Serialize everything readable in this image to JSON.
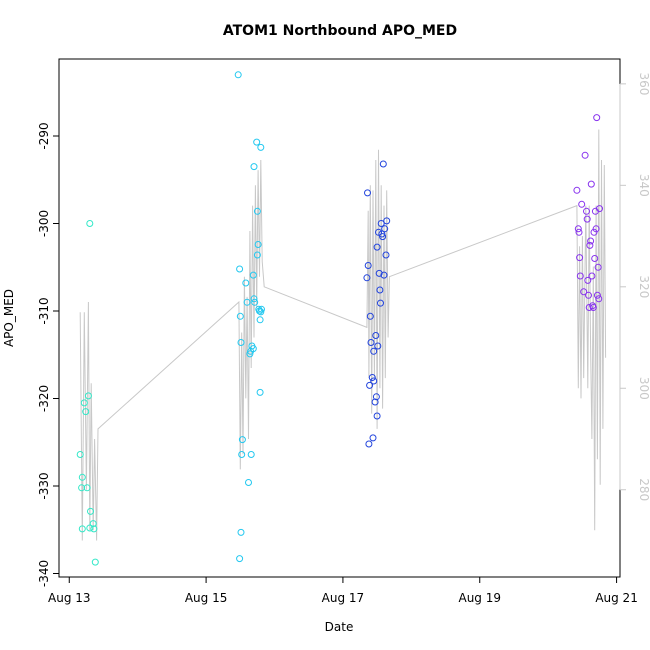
{
  "chart_data": {
    "type": "scatter",
    "title": "ATOM1 Northbound APO_MED",
    "xlabel": "Date",
    "ylabel": "APO_MED",
    "x_ticks": [
      "Aug 13",
      "Aug 15",
      "Aug 17",
      "Aug 19",
      "Aug 21"
    ],
    "x_range_days": [
      12.85,
      21.05
    ],
    "y_ticks": [
      -290,
      -300,
      -310,
      -320,
      -330,
      -340
    ],
    "ylim": [
      -340.4,
      -281.2
    ],
    "y2_ticks": [
      280,
      300,
      320,
      340,
      360
    ],
    "y2lim": [
      262.8,
      364.9
    ],
    "grid": false,
    "legend": "none",
    "colors": {
      "point_group1": "#33e8c8",
      "point_group2": "#22c8f0",
      "point_group3": "#2244dd",
      "point_group4": "#8833ee",
      "secondary_line": "#c8c8c8",
      "axis": "#000000",
      "right_axis": "#c8c8c8"
    },
    "series": [
      {
        "color_key": "point_group1",
        "points": [
          [
            13.18,
            -330.2
          ],
          [
            13.26,
            -330.2
          ],
          [
            13.3,
            -334.8
          ],
          [
            13.31,
            -332.9
          ],
          [
            13.19,
            -329.0
          ],
          [
            13.16,
            -326.4
          ],
          [
            13.22,
            -320.5
          ],
          [
            13.24,
            -321.5
          ],
          [
            13.28,
            -319.7
          ],
          [
            13.3,
            -300.0
          ],
          [
            13.35,
            -334.3
          ],
          [
            13.36,
            -334.9
          ],
          [
            13.38,
            -338.7
          ],
          [
            13.19,
            -334.9
          ]
        ]
      },
      {
        "color_key": "point_group2",
        "points": [
          [
            15.47,
            -283.0
          ],
          [
            15.49,
            -305.2
          ],
          [
            15.5,
            -310.6
          ],
          [
            15.51,
            -313.6
          ],
          [
            15.52,
            -326.4
          ],
          [
            15.53,
            -324.7
          ],
          [
            15.51,
            -335.3
          ],
          [
            15.49,
            -338.3
          ],
          [
            15.58,
            -306.8
          ],
          [
            15.6,
            -309.0
          ],
          [
            15.62,
            -329.6
          ],
          [
            15.64,
            -314.9
          ],
          [
            15.65,
            -314.6
          ],
          [
            15.67,
            -314.0
          ],
          [
            15.69,
            -314.3
          ],
          [
            15.66,
            -326.4
          ],
          [
            15.69,
            -305.9
          ],
          [
            15.7,
            -308.6
          ],
          [
            15.71,
            -309.0
          ],
          [
            15.7,
            -293.5
          ],
          [
            15.74,
            -290.7
          ],
          [
            15.75,
            -298.6
          ],
          [
            15.76,
            -302.4
          ],
          [
            15.75,
            -303.6
          ],
          [
            15.77,
            -309.8
          ],
          [
            15.78,
            -310.0
          ],
          [
            15.79,
            -319.3
          ],
          [
            15.8,
            -291.3
          ],
          [
            15.81,
            -309.8
          ],
          [
            15.8,
            -310.1
          ],
          [
            15.79,
            -311.0
          ]
        ]
      },
      {
        "color_key": "point_group3",
        "points": [
          [
            17.36,
            -296.5
          ],
          [
            17.37,
            -304.8
          ],
          [
            17.35,
            -306.2
          ],
          [
            17.4,
            -310.6
          ],
          [
            17.41,
            -313.6
          ],
          [
            17.39,
            -318.5
          ],
          [
            17.38,
            -325.2
          ],
          [
            17.44,
            -324.5
          ],
          [
            17.45,
            -314.6
          ],
          [
            17.43,
            -317.6
          ],
          [
            17.45,
            -318.0
          ],
          [
            17.47,
            -320.4
          ],
          [
            17.49,
            -319.8
          ],
          [
            17.5,
            -322.0
          ],
          [
            17.51,
            -314.0
          ],
          [
            17.48,
            -312.8
          ],
          [
            17.5,
            -302.7
          ],
          [
            17.52,
            -301.0
          ],
          [
            17.53,
            -305.7
          ],
          [
            17.54,
            -307.6
          ],
          [
            17.55,
            -309.1
          ],
          [
            17.56,
            -300.0
          ],
          [
            17.57,
            -301.2
          ],
          [
            17.58,
            -301.5
          ],
          [
            17.59,
            -293.2
          ],
          [
            17.6,
            -305.9
          ],
          [
            17.61,
            -300.6
          ],
          [
            17.63,
            -303.6
          ],
          [
            17.64,
            -299.7
          ]
        ]
      },
      {
        "color_key": "point_group4",
        "points": [
          [
            20.42,
            -296.2
          ],
          [
            20.44,
            -300.6
          ],
          [
            20.45,
            -301.0
          ],
          [
            20.46,
            -303.9
          ],
          [
            20.47,
            -306.0
          ],
          [
            20.49,
            -297.8
          ],
          [
            20.52,
            -307.8
          ],
          [
            20.54,
            -292.2
          ],
          [
            20.56,
            -298.6
          ],
          [
            20.57,
            -299.5
          ],
          [
            20.58,
            -306.5
          ],
          [
            20.59,
            -308.2
          ],
          [
            20.6,
            -309.6
          ],
          [
            20.61,
            -302.5
          ],
          [
            20.62,
            -302.0
          ],
          [
            20.63,
            -295.5
          ],
          [
            20.64,
            -306.0
          ],
          [
            20.65,
            -309.4
          ],
          [
            20.67,
            -301.0
          ],
          [
            20.68,
            -304.0
          ],
          [
            20.69,
            -298.6
          ],
          [
            20.7,
            -300.6
          ],
          [
            20.71,
            -287.9
          ],
          [
            20.72,
            -308.2
          ],
          [
            20.73,
            -305.0
          ],
          [
            20.74,
            -308.6
          ],
          [
            20.75,
            -298.3
          ],
          [
            20.66,
            -309.6
          ]
        ]
      }
    ],
    "secondary_line": {
      "axis": "right",
      "points": [
        [
          13.16,
          315
        ],
        [
          13.19,
          270
        ],
        [
          13.22,
          315
        ],
        [
          13.25,
          280
        ],
        [
          13.28,
          317
        ],
        [
          13.3,
          272
        ],
        [
          13.32,
          301
        ],
        [
          13.35,
          272
        ],
        [
          13.37,
          290
        ],
        [
          13.4,
          270
        ],
        [
          13.42,
          292
        ],
        [
          15.48,
          317
        ],
        [
          15.5,
          284
        ],
        [
          15.52,
          311
        ],
        [
          15.54,
          287
        ],
        [
          15.56,
          322
        ],
        [
          15.58,
          298
        ],
        [
          15.6,
          318
        ],
        [
          15.62,
          290
        ],
        [
          15.64,
          331
        ],
        [
          15.66,
          304
        ],
        [
          15.68,
          336
        ],
        [
          15.7,
          310
        ],
        [
          15.72,
          340
        ],
        [
          15.74,
          316
        ],
        [
          15.76,
          343
        ],
        [
          15.78,
          322
        ],
        [
          15.8,
          345
        ],
        [
          15.82,
          325
        ],
        [
          15.85,
          320
        ],
        [
          17.35,
          312
        ],
        [
          17.37,
          335
        ],
        [
          17.38,
          302
        ],
        [
          17.4,
          340
        ],
        [
          17.42,
          295
        ],
        [
          17.44,
          339
        ],
        [
          17.46,
          302
        ],
        [
          17.48,
          345
        ],
        [
          17.5,
          292
        ],
        [
          17.52,
          347
        ],
        [
          17.54,
          300
        ],
        [
          17.56,
          340
        ],
        [
          17.58,
          296
        ],
        [
          17.6,
          336
        ],
        [
          17.62,
          302
        ],
        [
          17.64,
          339
        ],
        [
          17.66,
          310
        ],
        [
          17.68,
          322
        ],
        [
          20.42,
          336
        ],
        [
          20.44,
          300
        ],
        [
          20.46,
          328
        ],
        [
          20.48,
          298
        ],
        [
          20.5,
          330
        ],
        [
          20.52,
          302
        ],
        [
          20.55,
          336
        ],
        [
          20.58,
          300
        ],
        [
          20.6,
          336
        ],
        [
          20.62,
          308
        ],
        [
          20.64,
          290
        ],
        [
          20.66,
          324
        ],
        [
          20.68,
          272
        ],
        [
          20.7,
          336
        ],
        [
          20.72,
          286
        ],
        [
          20.74,
          351
        ],
        [
          20.76,
          281
        ],
        [
          20.78,
          345
        ],
        [
          20.8,
          292
        ],
        [
          20.82,
          344
        ],
        [
          20.84,
          306
        ]
      ]
    }
  }
}
